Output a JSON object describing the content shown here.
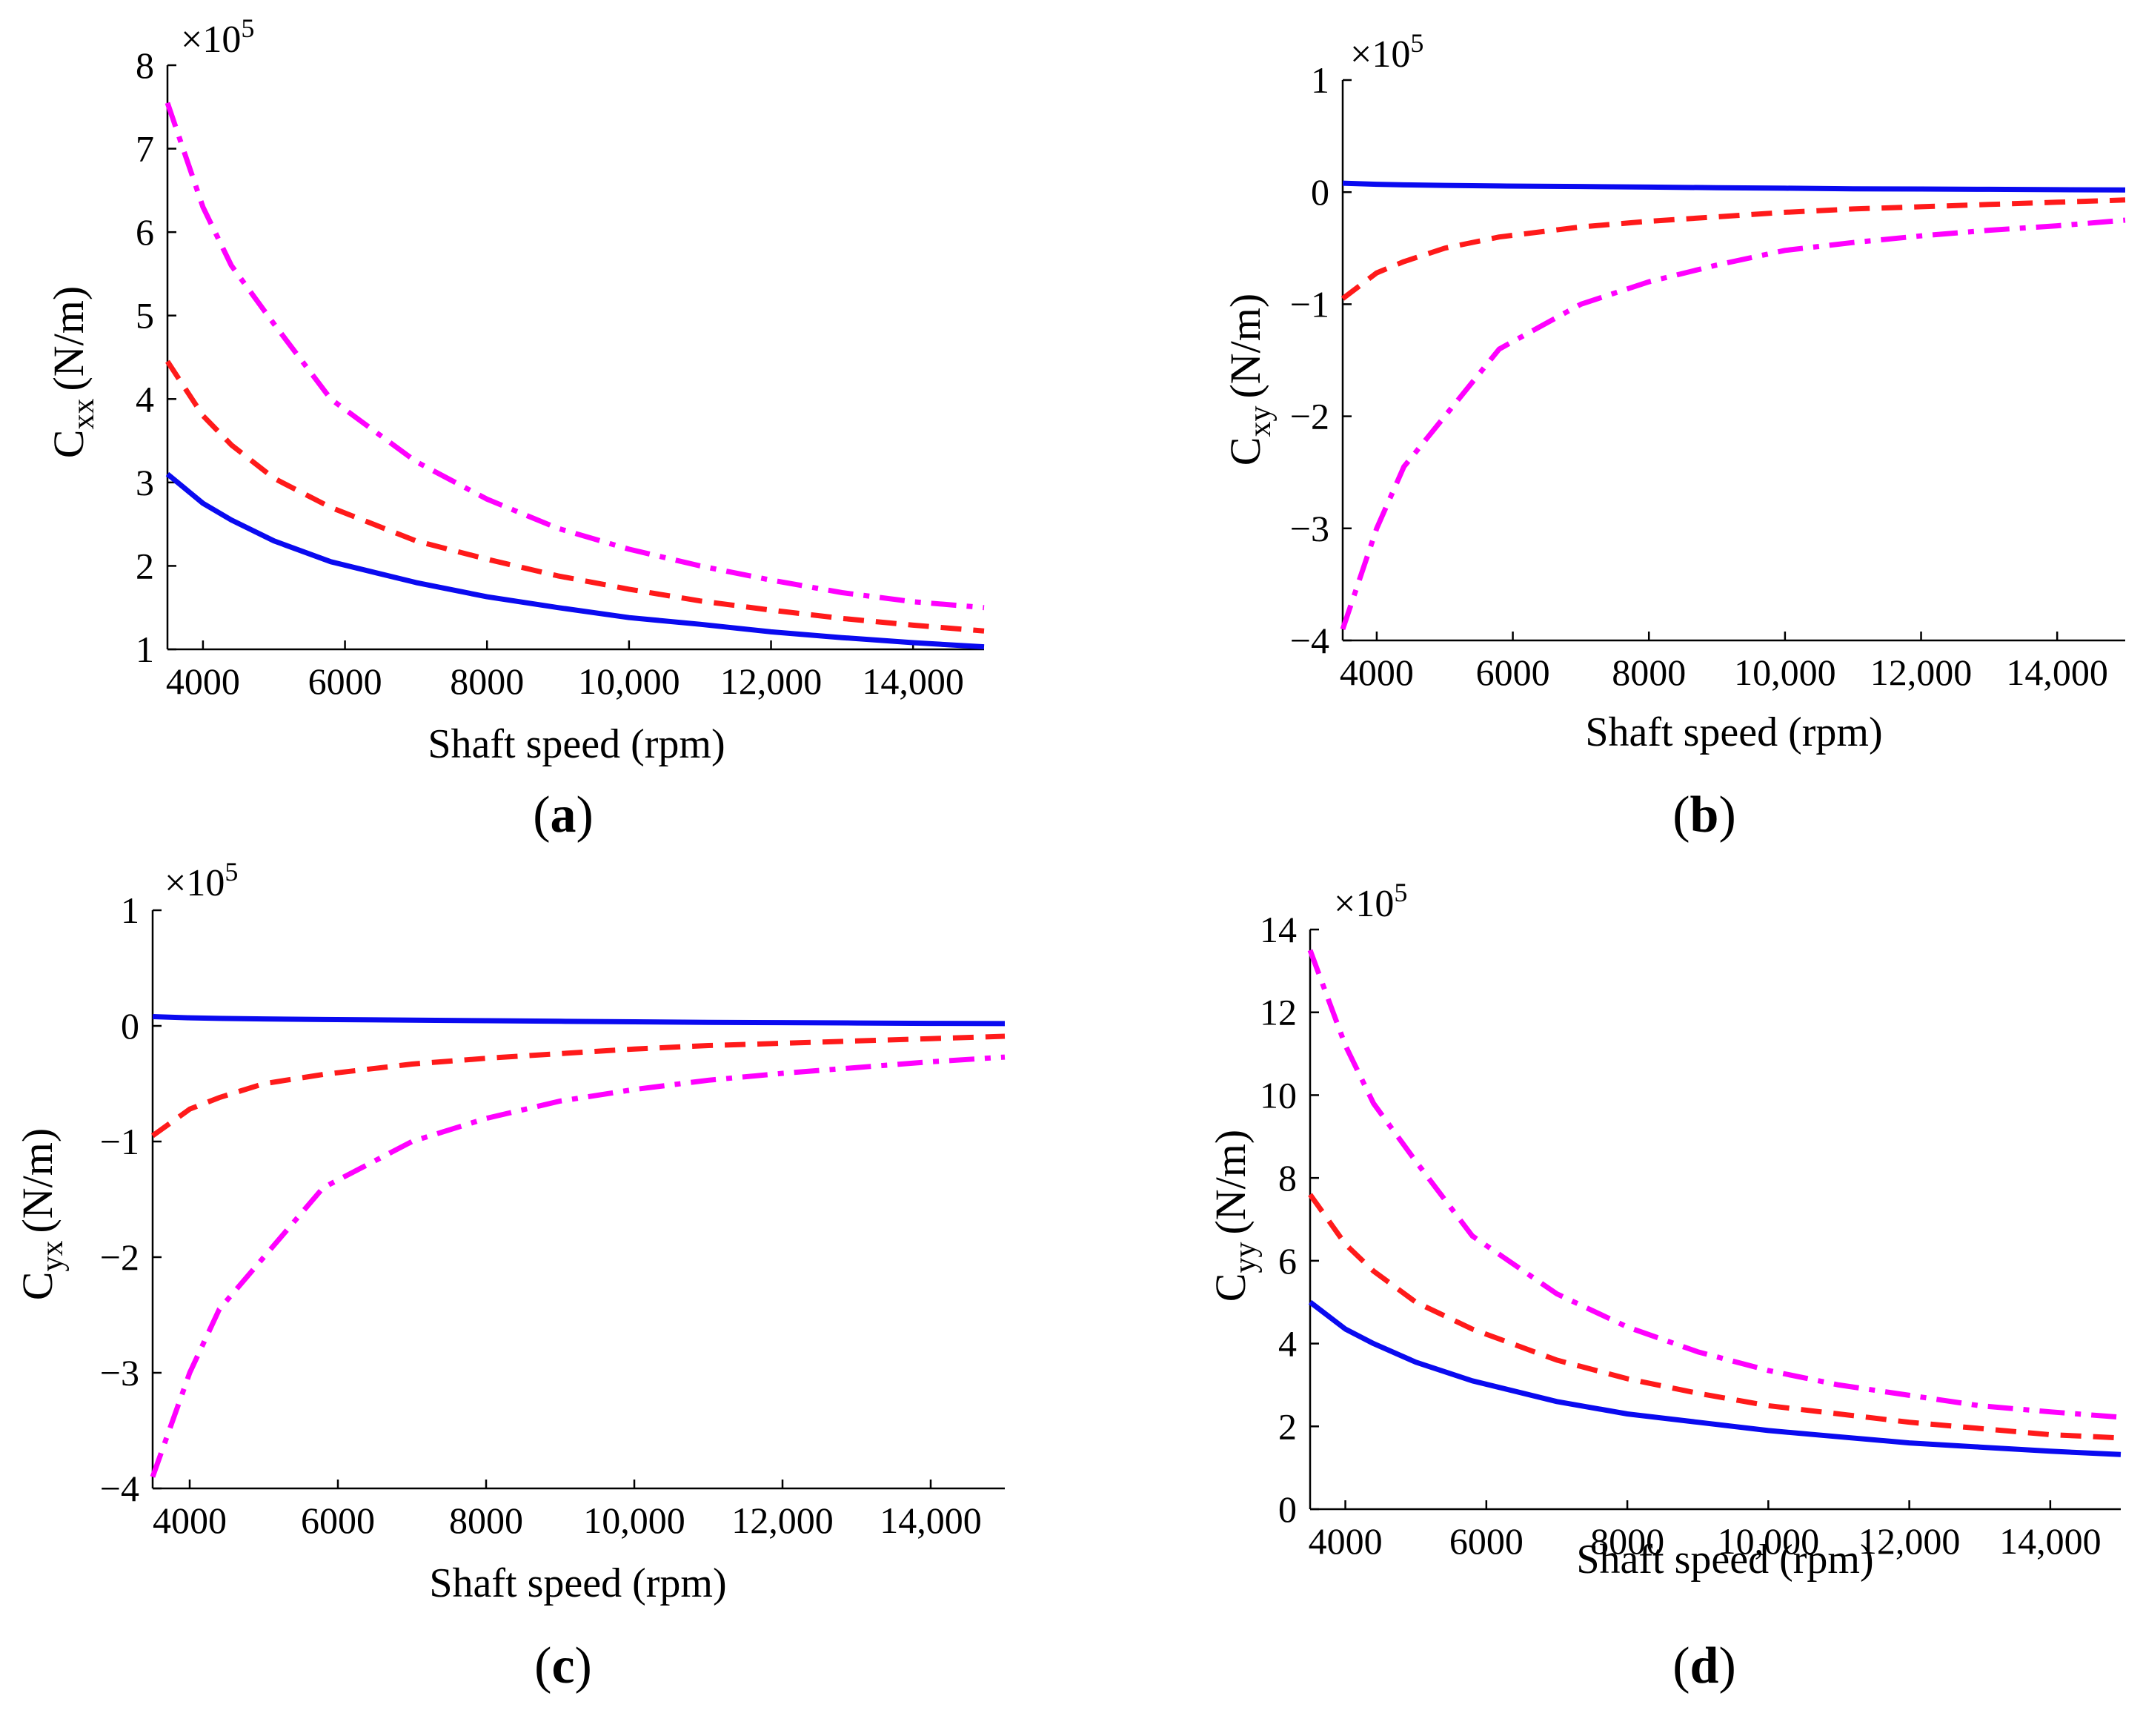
{
  "colors": {
    "solid": "#0a0af0",
    "dashed": "#ff1a1a",
    "dashdot": "#ff00ff",
    "axis": "#000000"
  },
  "chart_data": [
    {
      "type": "line",
      "panel_label": "a",
      "xlabel": "Shaft speed (rpm)",
      "ylabel_main": "C",
      "ylabel_sub": "xx",
      "ylabel_unit": "(N/m)",
      "exponent_base": "×10",
      "exponent_power": "5",
      "xlim": [
        3500,
        15000
      ],
      "ylim": [
        1,
        8
      ],
      "xticks": [
        4000,
        6000,
        8000,
        10000,
        12000,
        14000
      ],
      "xtick_labels": [
        "4000",
        "6000",
        "8000",
        "10,000",
        "12,000",
        "14,000"
      ],
      "yticks": [
        1,
        2,
        3,
        4,
        5,
        6,
        7,
        8
      ],
      "ytick_labels": [
        "1",
        "2",
        "3",
        "4",
        "5",
        "6",
        "7",
        "8"
      ],
      "x": [
        3500,
        4000,
        4400,
        5000,
        5800,
        7000,
        8000,
        9000,
        10000,
        11000,
        12000,
        13000,
        14000,
        15000
      ],
      "series": [
        {
          "name": "solid",
          "style": "solid",
          "values": [
            3.1,
            2.75,
            2.55,
            2.3,
            2.05,
            1.8,
            1.63,
            1.5,
            1.38,
            1.3,
            1.21,
            1.14,
            1.08,
            1.03
          ]
        },
        {
          "name": "dashed",
          "style": "dashed",
          "values": [
            4.45,
            3.8,
            3.45,
            3.05,
            2.7,
            2.3,
            2.08,
            1.88,
            1.72,
            1.58,
            1.47,
            1.37,
            1.29,
            1.22
          ]
        },
        {
          "name": "dashdot",
          "style": "dashdot",
          "values": [
            7.55,
            6.3,
            5.6,
            4.9,
            4.0,
            3.25,
            2.8,
            2.45,
            2.2,
            2.0,
            1.83,
            1.68,
            1.57,
            1.5
          ]
        }
      ]
    },
    {
      "type": "line",
      "panel_label": "b",
      "xlabel": "Shaft speed (rpm)",
      "ylabel_main": "C",
      "ylabel_sub": "xy",
      "ylabel_unit": "(N/m)",
      "exponent_base": "×10",
      "exponent_power": "5",
      "xlim": [
        3500,
        15000
      ],
      "ylim": [
        -4,
        1
      ],
      "xticks": [
        4000,
        6000,
        8000,
        10000,
        12000,
        14000
      ],
      "xtick_labels": [
        "4000",
        "6000",
        "8000",
        "10,000",
        "12,000",
        "14,000"
      ],
      "yticks": [
        -4,
        -3,
        -2,
        -1,
        0,
        1
      ],
      "ytick_labels": [
        "−4",
        "−3",
        "−2",
        "−1",
        "0",
        "1"
      ],
      "x": [
        3500,
        4000,
        4400,
        5000,
        5800,
        7000,
        8000,
        9000,
        10000,
        11000,
        12000,
        13000,
        14000,
        15000
      ],
      "series": [
        {
          "name": "solid",
          "style": "solid",
          "values": [
            0.08,
            0.07,
            0.065,
            0.06,
            0.055,
            0.05,
            0.045,
            0.04,
            0.035,
            0.03,
            0.028,
            0.025,
            0.022,
            0.02
          ]
        },
        {
          "name": "dashed",
          "style": "dashed",
          "values": [
            -0.95,
            -0.72,
            -0.62,
            -0.5,
            -0.4,
            -0.31,
            -0.26,
            -0.22,
            -0.18,
            -0.15,
            -0.13,
            -0.11,
            -0.09,
            -0.07
          ]
        },
        {
          "name": "dashdot",
          "style": "dashdot",
          "values": [
            -3.9,
            -3.0,
            -2.45,
            -2.0,
            -1.4,
            -1.0,
            -0.8,
            -0.65,
            -0.52,
            -0.45,
            -0.39,
            -0.34,
            -0.3,
            -0.25
          ]
        }
      ]
    },
    {
      "type": "line",
      "panel_label": "c",
      "xlabel": "Shaft speed (rpm)",
      "ylabel_main": "C",
      "ylabel_sub": "yx",
      "ylabel_unit": "(N/m)",
      "exponent_base": "×10",
      "exponent_power": "5",
      "xlim": [
        3500,
        15000
      ],
      "ylim": [
        -4,
        1
      ],
      "xticks": [
        4000,
        6000,
        8000,
        10000,
        12000,
        14000
      ],
      "xtick_labels": [
        "4000",
        "6000",
        "8000",
        "10,000",
        "12,000",
        "14,000"
      ],
      "yticks": [
        -4,
        -3,
        -2,
        -1,
        0,
        1
      ],
      "ytick_labels": [
        "−4",
        "−3",
        "−2",
        "−1",
        "0",
        "1"
      ],
      "x": [
        3500,
        4000,
        4400,
        5000,
        5800,
        7000,
        8000,
        9000,
        10000,
        11000,
        12000,
        13000,
        14000,
        15000
      ],
      "series": [
        {
          "name": "solid",
          "style": "solid",
          "values": [
            0.08,
            0.07,
            0.065,
            0.06,
            0.055,
            0.05,
            0.045,
            0.04,
            0.035,
            0.03,
            0.028,
            0.025,
            0.022,
            0.02
          ]
        },
        {
          "name": "dashed",
          "style": "dashed",
          "values": [
            -0.95,
            -0.72,
            -0.62,
            -0.5,
            -0.42,
            -0.33,
            -0.28,
            -0.24,
            -0.2,
            -0.17,
            -0.15,
            -0.13,
            -0.11,
            -0.09
          ]
        },
        {
          "name": "dashdot",
          "style": "dashdot",
          "values": [
            -3.9,
            -3.0,
            -2.45,
            -2.0,
            -1.4,
            -1.0,
            -0.8,
            -0.65,
            -0.55,
            -0.47,
            -0.41,
            -0.36,
            -0.31,
            -0.27
          ]
        }
      ]
    },
    {
      "type": "line",
      "panel_label": "d",
      "xlabel": "Shaft speed (rpm)",
      "ylabel_main": "C",
      "ylabel_sub": "yy",
      "ylabel_unit": "(N/m)",
      "exponent_base": "×10",
      "exponent_power": "5",
      "xlim": [
        3500,
        15000
      ],
      "ylim": [
        0,
        14
      ],
      "xticks": [
        4000,
        6000,
        8000,
        10000,
        12000,
        14000
      ],
      "xtick_labels": [
        "4000",
        "6000",
        "8000",
        "10,000",
        "12,000",
        "14,000"
      ],
      "yticks": [
        0,
        2,
        4,
        6,
        8,
        10,
        12,
        14
      ],
      "ytick_labels": [
        "0",
        "2",
        "4",
        "6",
        "8",
        "10",
        "12",
        "14"
      ],
      "x": [
        3500,
        4000,
        4400,
        5000,
        5800,
        7000,
        8000,
        9000,
        10000,
        11000,
        12000,
        13000,
        14000,
        15000
      ],
      "series": [
        {
          "name": "solid",
          "style": "solid",
          "values": [
            5.0,
            4.35,
            4.0,
            3.55,
            3.1,
            2.6,
            2.3,
            2.1,
            1.9,
            1.75,
            1.6,
            1.5,
            1.4,
            1.32
          ]
        },
        {
          "name": "dashed",
          "style": "dashed",
          "values": [
            7.6,
            6.4,
            5.75,
            5.0,
            4.35,
            3.6,
            3.15,
            2.8,
            2.5,
            2.3,
            2.1,
            1.95,
            1.8,
            1.72
          ]
        },
        {
          "name": "dashdot",
          "style": "dashdot",
          "values": [
            13.5,
            11.2,
            9.8,
            8.4,
            6.6,
            5.2,
            4.4,
            3.8,
            3.35,
            3.0,
            2.75,
            2.5,
            2.35,
            2.22
          ]
        }
      ]
    }
  ]
}
